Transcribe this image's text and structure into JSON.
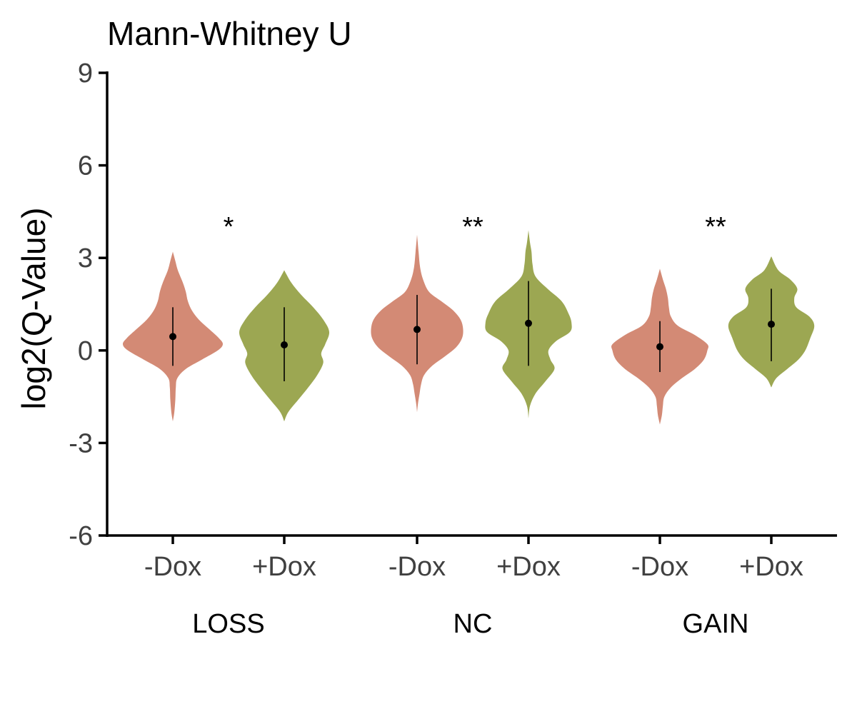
{
  "chart_data": {
    "type": "violin",
    "title": "Mann-Whitney U",
    "ylabel": "log2(Q-Value)",
    "xlabel": "",
    "ylim": [
      -6,
      9
    ],
    "yticks": [
      {
        "value": -6,
        "label": "-6"
      },
      {
        "value": -3,
        "label": "-3"
      },
      {
        "value": 0,
        "label": "0"
      },
      {
        "value": 3,
        "label": "3"
      },
      {
        "value": 6,
        "label": "6"
      },
      {
        "value": 9,
        "label": "9"
      }
    ],
    "grid": false,
    "legend": "none",
    "colors": {
      "-Dox": "#D38A75",
      "+Dox": "#9CA752"
    },
    "groups": [
      {
        "name": "LOSS",
        "significance": "*",
        "conditions": [
          {
            "label": "-Dox",
            "median": 0.45,
            "low": -0.5,
            "high": 1.4,
            "profile": [
              [
                -2.3,
                0
              ],
              [
                -2.0,
                0.03
              ],
              [
                -1.6,
                0.05
              ],
              [
                -1.2,
                0.06
              ],
              [
                -0.9,
                0.09
              ],
              [
                -0.6,
                0.26
              ],
              [
                -0.3,
                0.58
              ],
              [
                0.0,
                0.9
              ],
              [
                0.2,
                1.0
              ],
              [
                0.4,
                0.92
              ],
              [
                0.7,
                0.72
              ],
              [
                1.0,
                0.52
              ],
              [
                1.3,
                0.38
              ],
              [
                1.6,
                0.3
              ],
              [
                1.9,
                0.26
              ],
              [
                2.2,
                0.2
              ],
              [
                2.6,
                0.1
              ],
              [
                2.9,
                0.05
              ],
              [
                3.2,
                0
              ]
            ]
          },
          {
            "label": "+Dox",
            "median": 0.18,
            "low": -1.0,
            "high": 1.4,
            "profile": [
              [
                -2.3,
                0
              ],
              [
                -2.0,
                0.08
              ],
              [
                -1.6,
                0.28
              ],
              [
                -1.2,
                0.48
              ],
              [
                -0.8,
                0.66
              ],
              [
                -0.4,
                0.78
              ],
              [
                -0.1,
                0.74
              ],
              [
                0.2,
                0.82
              ],
              [
                0.6,
                0.9
              ],
              [
                1.0,
                0.78
              ],
              [
                1.4,
                0.58
              ],
              [
                1.8,
                0.34
              ],
              [
                2.2,
                0.14
              ],
              [
                2.6,
                0
              ]
            ]
          }
        ]
      },
      {
        "name": "NC",
        "significance": "**",
        "conditions": [
          {
            "label": "-Dox",
            "median": 0.68,
            "low": -0.45,
            "high": 1.8,
            "profile": [
              [
                -2.0,
                0
              ],
              [
                -1.7,
                0.02
              ],
              [
                -1.4,
                0.05
              ],
              [
                -1.1,
                0.08
              ],
              [
                -0.8,
                0.14
              ],
              [
                -0.5,
                0.3
              ],
              [
                -0.2,
                0.55
              ],
              [
                0.1,
                0.78
              ],
              [
                0.4,
                0.9
              ],
              [
                0.7,
                0.92
              ],
              [
                1.0,
                0.87
              ],
              [
                1.3,
                0.72
              ],
              [
                1.6,
                0.48
              ],
              [
                1.9,
                0.24
              ],
              [
                2.3,
                0.12
              ],
              [
                2.7,
                0.06
              ],
              [
                3.2,
                0.03
              ],
              [
                3.75,
                0
              ]
            ]
          },
          {
            "label": "+Dox",
            "median": 0.88,
            "low": -0.5,
            "high": 2.25,
            "profile": [
              [
                -2.2,
                0
              ],
              [
                -1.8,
                0.03
              ],
              [
                -1.4,
                0.14
              ],
              [
                -1.0,
                0.34
              ],
              [
                -0.6,
                0.52
              ],
              [
                -0.3,
                0.44
              ],
              [
                0.0,
                0.4
              ],
              [
                0.3,
                0.55
              ],
              [
                0.6,
                0.83
              ],
              [
                0.9,
                0.86
              ],
              [
                1.2,
                0.8
              ],
              [
                1.6,
                0.66
              ],
              [
                2.0,
                0.38
              ],
              [
                2.4,
                0.14
              ],
              [
                2.8,
                0.08
              ],
              [
                3.2,
                0.06
              ],
              [
                3.5,
                0.03
              ],
              [
                3.9,
                0
              ]
            ]
          }
        ]
      },
      {
        "name": "GAIN",
        "significance": "**",
        "conditions": [
          {
            "label": "-Dox",
            "median": 0.12,
            "low": -0.7,
            "high": 0.95,
            "profile": [
              [
                -2.4,
                0
              ],
              [
                -2.1,
                0.04
              ],
              [
                -1.8,
                0.06
              ],
              [
                -1.5,
                0.09
              ],
              [
                -1.2,
                0.22
              ],
              [
                -0.9,
                0.44
              ],
              [
                -0.6,
                0.7
              ],
              [
                -0.3,
                0.88
              ],
              [
                0.0,
                0.95
              ],
              [
                0.2,
                0.95
              ],
              [
                0.5,
                0.7
              ],
              [
                0.8,
                0.36
              ],
              [
                1.1,
                0.22
              ],
              [
                1.4,
                0.18
              ],
              [
                1.7,
                0.16
              ],
              [
                2.0,
                0.12
              ],
              [
                2.3,
                0.06
              ],
              [
                2.65,
                0
              ]
            ]
          },
          {
            "label": "+Dox",
            "median": 0.85,
            "low": -0.35,
            "high": 2.0,
            "profile": [
              [
                -1.2,
                0
              ],
              [
                -0.9,
                0.1
              ],
              [
                -0.6,
                0.32
              ],
              [
                -0.3,
                0.54
              ],
              [
                0.0,
                0.68
              ],
              [
                0.4,
                0.78
              ],
              [
                0.8,
                0.86
              ],
              [
                1.1,
                0.76
              ],
              [
                1.4,
                0.5
              ],
              [
                1.7,
                0.46
              ],
              [
                2.0,
                0.52
              ],
              [
                2.3,
                0.38
              ],
              [
                2.6,
                0.14
              ],
              [
                3.05,
                0
              ]
            ]
          }
        ]
      }
    ]
  }
}
